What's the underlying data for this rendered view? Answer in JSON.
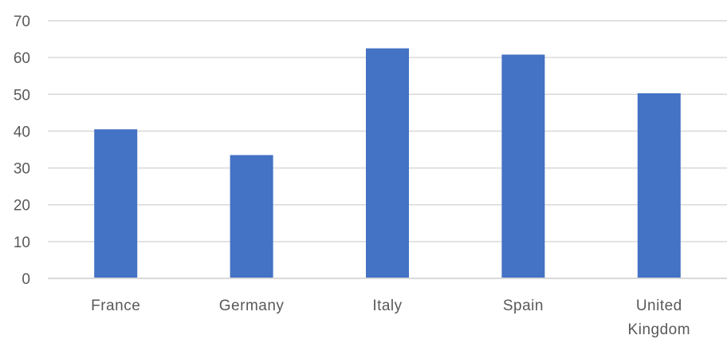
{
  "chart_data": {
    "type": "bar",
    "categories": [
      "France",
      "Germany",
      "Italy",
      "Spain",
      "United Kingdom"
    ],
    "category_label_lines": [
      [
        "France"
      ],
      [
        "Germany"
      ],
      [
        "Italy"
      ],
      [
        "Spain"
      ],
      [
        "United",
        "Kingdom"
      ]
    ],
    "values": [
      40.5,
      33.5,
      62.5,
      60.8,
      50.3
    ],
    "yticks": [
      0,
      10,
      20,
      30,
      40,
      50,
      60,
      70
    ],
    "ylim": [
      0,
      70
    ],
    "title": "",
    "xlabel": "",
    "ylabel": "",
    "grid": true,
    "legend": "none",
    "bar_color": "#4472c4",
    "grid_color": "#d9d9d9",
    "label_color": "#595959"
  }
}
